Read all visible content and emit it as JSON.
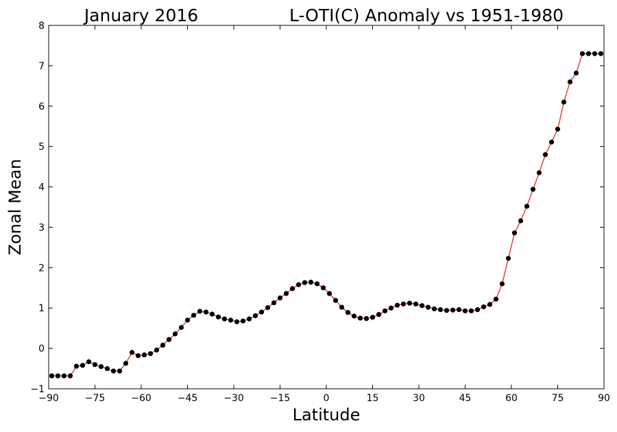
{
  "chart_data": {
    "type": "line",
    "title_left": "January 2016",
    "title_right": "L-OTI(C) Anomaly vs 1951-1980",
    "xlabel": "Latitude",
    "ylabel": "Zonal Mean",
    "xlim": [
      -90,
      90
    ],
    "ylim": [
      -1,
      8
    ],
    "x_ticks": [
      -90,
      -75,
      -60,
      -45,
      -30,
      -15,
      0,
      15,
      30,
      45,
      60,
      75,
      90
    ],
    "y_ticks": [
      -1,
      0,
      1,
      2,
      3,
      4,
      5,
      6,
      7,
      8
    ],
    "grid": false,
    "colors": {
      "line": "#e8231e",
      "marker": "#000000"
    },
    "series": [
      {
        "x": [
          -89,
          -87,
          -85,
          -83,
          -81,
          -79,
          -77,
          -75,
          -73,
          -71,
          -69,
          -67,
          -65,
          -63,
          -61,
          -59,
          -57,
          -55,
          -53,
          -51,
          -49,
          -47,
          -45,
          -43,
          -41,
          -39,
          -37,
          -35,
          -33,
          -31,
          -29,
          -27,
          -25,
          -23,
          -21,
          -19,
          -17,
          -15,
          -13,
          -11,
          -9,
          -7,
          -5,
          -3,
          -1,
          1,
          3,
          5,
          7,
          9,
          11,
          13,
          15,
          17,
          19,
          21,
          23,
          25,
          27,
          29,
          31,
          33,
          35,
          37,
          39,
          41,
          43,
          45,
          47,
          49,
          51,
          53,
          55,
          57,
          59,
          61,
          63,
          65,
          67,
          69,
          71,
          73,
          75,
          77,
          79,
          81,
          83,
          85,
          87,
          89
        ],
        "values": [
          -0.68,
          -0.68,
          -0.68,
          -0.68,
          -0.44,
          -0.42,
          -0.33,
          -0.4,
          -0.45,
          -0.5,
          -0.56,
          -0.56,
          -0.37,
          -0.1,
          -0.18,
          -0.16,
          -0.13,
          -0.04,
          0.08,
          0.22,
          0.36,
          0.52,
          0.7,
          0.82,
          0.92,
          0.9,
          0.85,
          0.78,
          0.73,
          0.7,
          0.66,
          0.68,
          0.73,
          0.81,
          0.9,
          1.01,
          1.13,
          1.25,
          1.36,
          1.48,
          1.58,
          1.63,
          1.64,
          1.6,
          1.5,
          1.36,
          1.19,
          1.02,
          0.89,
          0.8,
          0.75,
          0.74,
          0.77,
          0.84,
          0.93,
          1.0,
          1.07,
          1.1,
          1.12,
          1.1,
          1.06,
          1.02,
          0.98,
          0.96,
          0.94,
          0.95,
          0.96,
          0.93,
          0.93,
          0.96,
          1.03,
          1.09,
          1.22,
          1.6,
          2.23,
          2.86,
          3.16,
          3.52,
          3.94,
          4.35,
          4.8,
          5.11,
          5.43,
          6.1,
          6.6,
          6.82,
          7.3,
          7.3,
          7.3,
          7.3
        ]
      }
    ]
  }
}
